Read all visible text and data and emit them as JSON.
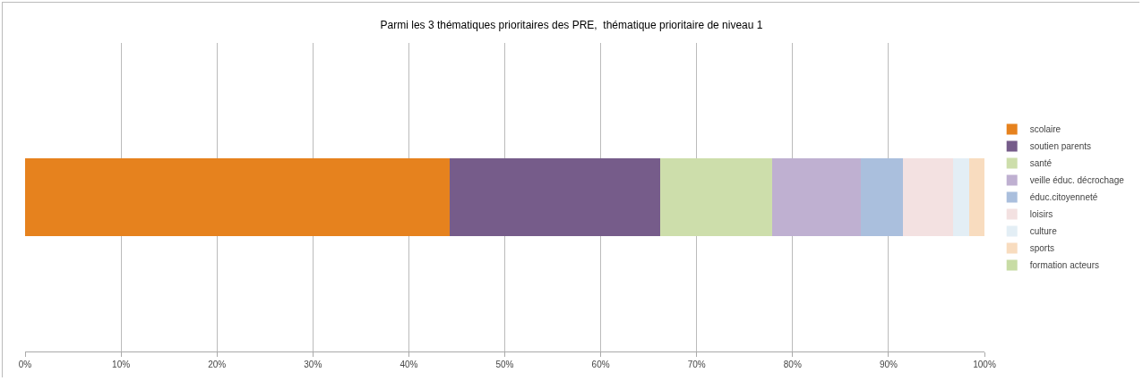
{
  "chart_data": {
    "type": "bar",
    "orientation": "horizontal",
    "stacked": true,
    "title": "Parmi les 3 thématiques prioritaires des PRE,  thématique prioritaire de niveau 1",
    "categories": [
      null
    ],
    "series": [
      {
        "name": "scolaire",
        "color": "#e6821e",
        "values": [
          44.3
        ]
      },
      {
        "name": "soutien parents",
        "color": "#765c8a",
        "values": [
          21.9
        ]
      },
      {
        "name": "santé",
        "color": "#cddeab",
        "values": [
          11.7
        ]
      },
      {
        "name": "veille éduc. décrochage",
        "color": "#bfb0d1",
        "values": [
          9.2
        ]
      },
      {
        "name": "éduc.citoyenneté",
        "color": "#aabfdd",
        "values": [
          4.4
        ]
      },
      {
        "name": "loisirs",
        "color": "#f3e1e1",
        "values": [
          5.2
        ]
      },
      {
        "name": "culture",
        "color": "#e3eef5",
        "values": [
          1.7
        ]
      },
      {
        "name": "sports",
        "color": "#f8dcbf",
        "values": [
          1.6
        ]
      },
      {
        "name": "formation acteurs",
        "color": "#c8dca5",
        "values": [
          0
        ]
      }
    ],
    "xlim": [
      0,
      100
    ],
    "xticks": [
      {
        "value": 0,
        "label": "0%"
      },
      {
        "value": 10,
        "label": "10%"
      },
      {
        "value": 20,
        "label": "20%"
      },
      {
        "value": 30,
        "label": "30%"
      },
      {
        "value": 40,
        "label": "40%"
      },
      {
        "value": 50,
        "label": "50%"
      },
      {
        "value": 60,
        "label": "60%"
      },
      {
        "value": 70,
        "label": "70%"
      },
      {
        "value": 80,
        "label": "80%"
      },
      {
        "value": 90,
        "label": "90%"
      },
      {
        "value": 100,
        "label": "100%"
      }
    ],
    "grid": "x",
    "legend": "right"
  }
}
